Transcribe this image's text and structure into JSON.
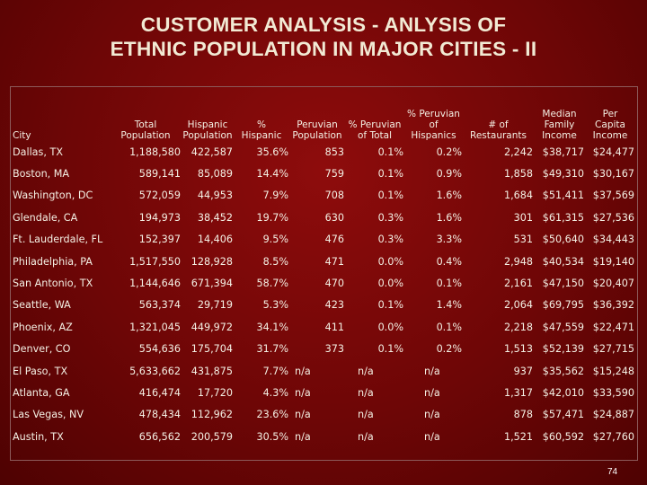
{
  "title": {
    "line1": "CUSTOMER ANALYSIS -  ANLYSIS OF",
    "line2": "ETHNIC POPULATION IN MAJOR CITIES - II"
  },
  "columns": [
    "City",
    "Total Population",
    "Hispanic Population",
    "% Hispanic",
    "Peruvian Population",
    "% Peruvian of Total",
    "% Peruvian of Hispanics",
    "# of Restaurants",
    "Median Family Income",
    "Per Capita Income"
  ],
  "rows": [
    [
      "Dallas, TX",
      "1,188,580",
      "422,587",
      "35.6%",
      "853",
      "0.1%",
      "0.2%",
      "2,242",
      "$38,717",
      "$24,477"
    ],
    [
      "Boston, MA",
      "589,141",
      "85,089",
      "14.4%",
      "759",
      "0.1%",
      "0.9%",
      "1,858",
      "$49,310",
      "$30,167"
    ],
    [
      "Washington, DC",
      "572,059",
      "44,953",
      "7.9%",
      "708",
      "0.1%",
      "1.6%",
      "1,684",
      "$51,411",
      "$37,569"
    ],
    [
      "Glendale, CA",
      "194,973",
      "38,452",
      "19.7%",
      "630",
      "0.3%",
      "1.6%",
      "301",
      "$61,315",
      "$27,536"
    ],
    [
      "Ft. Lauderdale, FL",
      "152,397",
      "14,406",
      "9.5%",
      "476",
      "0.3%",
      "3.3%",
      "531",
      "$50,640",
      "$34,443"
    ],
    [
      "Philadelphia, PA",
      "1,517,550",
      "128,928",
      "8.5%",
      "471",
      "0.0%",
      "0.4%",
      "2,948",
      "$40,534",
      "$19,140"
    ],
    [
      "San Antonio, TX",
      "1,144,646",
      "671,394",
      "58.7%",
      "470",
      "0.0%",
      "0.1%",
      "2,161",
      "$47,150",
      "$20,407"
    ],
    [
      "Seattle, WA",
      "563,374",
      "29,719",
      "5.3%",
      "423",
      "0.1%",
      "1.4%",
      "2,064",
      "$69,795",
      "$36,392"
    ],
    [
      "Phoenix, AZ",
      "1,321,045",
      "449,972",
      "34.1%",
      "411",
      "0.0%",
      "0.1%",
      "2,218",
      "$47,559",
      "$22,471"
    ],
    [
      "Denver, CO",
      "554,636",
      "175,704",
      "31.7%",
      "373",
      "0.1%",
      "0.2%",
      "1,513",
      "$52,139",
      "$27,715"
    ],
    [
      "El Paso, TX",
      "5,633,662",
      "431,875",
      "7.7%",
      "n/a",
      "n/a",
      "n/a",
      "937",
      "$35,562",
      "$15,248"
    ],
    [
      "Atlanta, GA",
      "416,474",
      "17,720",
      "4.3%",
      "n/a",
      "n/a",
      "n/a",
      "1,317",
      "$42,010",
      "$33,590"
    ],
    [
      "Las Vegas, NV",
      "478,434",
      "112,962",
      "23.6%",
      "n/a",
      "n/a",
      "n/a",
      "878",
      "$57,471",
      "$24,887"
    ],
    [
      "Austin, TX",
      "656,562",
      "200,579",
      "30.5%",
      "n/a",
      "n/a",
      "n/a",
      "1,521",
      "$60,592",
      "$27,760"
    ]
  ],
  "page_number": "74"
}
